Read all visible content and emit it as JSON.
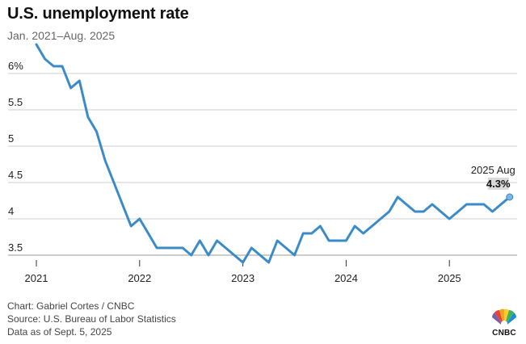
{
  "header": {
    "title": "U.S. unemployment rate",
    "subtitle": "Jan. 2021–Aug. 2025"
  },
  "footer": {
    "credit": "Chart: Gabriel Cortes / CNBC",
    "source": "Source: U.S. Bureau of Labor Statistics",
    "data_as_of": "Data as of Sept. 5, 2025"
  },
  "logo": {
    "text": "CNBC",
    "icon": "peacock-logo-icon"
  },
  "colors": {
    "line": "#3a8bc8",
    "grid": "#cfcfcf",
    "label_box": "#d9d9d9",
    "text": "#222222"
  },
  "annotation": {
    "label": "2025 Aug",
    "value": "4.3%"
  },
  "chart_data": {
    "type": "line",
    "title": "U.S. unemployment rate",
    "subtitle": "Jan. 2021–Aug. 2025",
    "xlabel": "",
    "ylabel": "",
    "ylim": [
      3.35,
      6.6
    ],
    "grid": true,
    "y_ticks": [
      3.5,
      4,
      4.5,
      5,
      5.5,
      6
    ],
    "y_tick_labels": [
      "3.5",
      "4",
      "4.5",
      "5",
      "5.5",
      "6%"
    ],
    "x_ticks": [
      "2021",
      "2022",
      "2023",
      "2024",
      "2025"
    ],
    "x": [
      "2021-01",
      "2021-02",
      "2021-03",
      "2021-04",
      "2021-05",
      "2021-06",
      "2021-07",
      "2021-08",
      "2021-09",
      "2021-10",
      "2021-11",
      "2021-12",
      "2022-01",
      "2022-02",
      "2022-03",
      "2022-04",
      "2022-05",
      "2022-06",
      "2022-07",
      "2022-08",
      "2022-09",
      "2022-10",
      "2022-11",
      "2022-12",
      "2023-01",
      "2023-02",
      "2023-03",
      "2023-04",
      "2023-05",
      "2023-06",
      "2023-07",
      "2023-08",
      "2023-09",
      "2023-10",
      "2023-11",
      "2023-12",
      "2024-01",
      "2024-02",
      "2024-03",
      "2024-04",
      "2024-05",
      "2024-06",
      "2024-07",
      "2024-08",
      "2024-09",
      "2024-10",
      "2024-11",
      "2024-12",
      "2025-01",
      "2025-02",
      "2025-03",
      "2025-04",
      "2025-05",
      "2025-06",
      "2025-07",
      "2025-08"
    ],
    "series": [
      {
        "values": [
          6.4,
          6.2,
          6.1,
          6.1,
          5.8,
          5.9,
          5.4,
          5.2,
          4.8,
          4.5,
          4.2,
          3.9,
          4.0,
          3.8,
          3.6,
          3.6,
          3.6,
          3.6,
          3.5,
          3.7,
          3.5,
          3.7,
          3.6,
          3.5,
          3.4,
          3.6,
          3.5,
          3.4,
          3.7,
          3.6,
          3.5,
          3.8,
          3.8,
          3.9,
          3.7,
          3.7,
          3.7,
          3.9,
          3.8,
          3.9,
          4.0,
          4.1,
          4.3,
          4.2,
          4.1,
          4.1,
          4.2,
          4.1,
          4.0,
          4.1,
          4.2,
          4.2,
          4.2,
          4.1,
          4.2,
          4.3
        ]
      }
    ]
  }
}
